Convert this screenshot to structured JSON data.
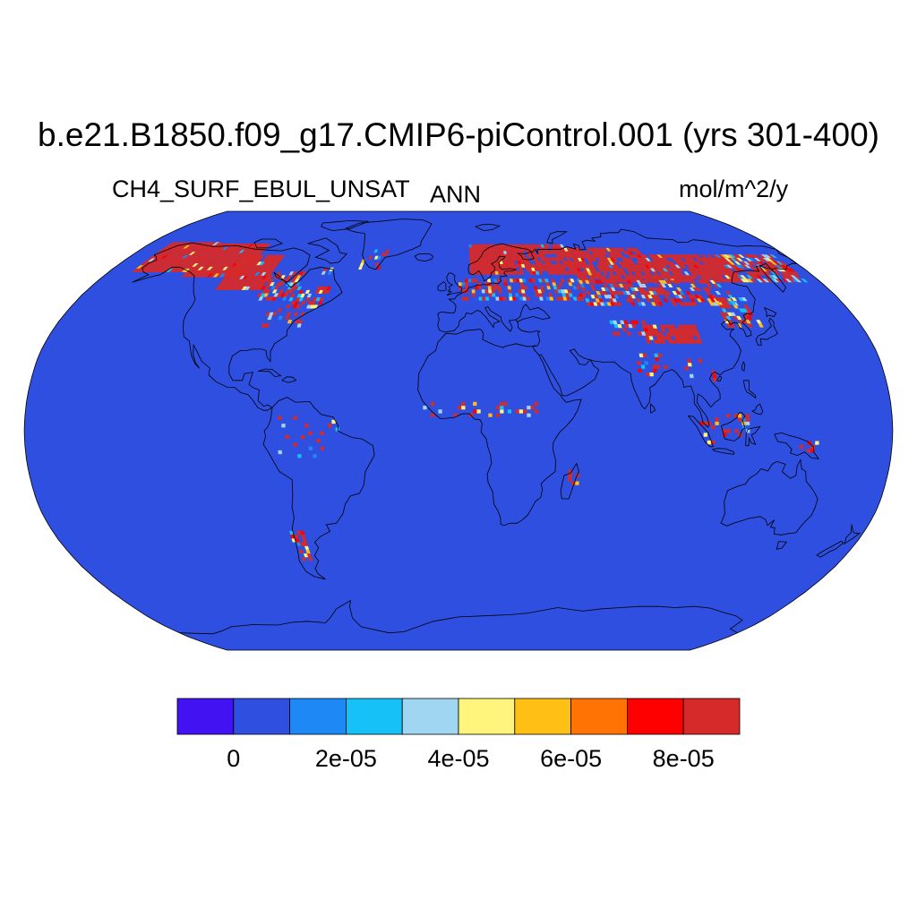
{
  "title": "b.e21.B1850.f09_g17.CMIP6-piControl.001 (yrs 301-400)",
  "variable": "CH4_SURF_EBUL_UNSAT",
  "season": "ANN",
  "units": "mol/m^2/y",
  "projection": "robinson",
  "ocean_color": "#2e4fe0",
  "colorbar": {
    "colors": [
      "#4212f2",
      "#2e4fe0",
      "#1e88f5",
      "#16c1f7",
      "#a0d6f2",
      "#fff57c",
      "#ffbf14",
      "#ff7305",
      "#ff0000",
      "#d62a2a"
    ],
    "tick_labels": [
      "0",
      "2e-05",
      "4e-05",
      "6e-05",
      "8e-05"
    ],
    "tick_values": [
      0,
      2e-05,
      4e-05,
      6e-05,
      8e-05
    ],
    "level_step": 1e-05
  }
}
